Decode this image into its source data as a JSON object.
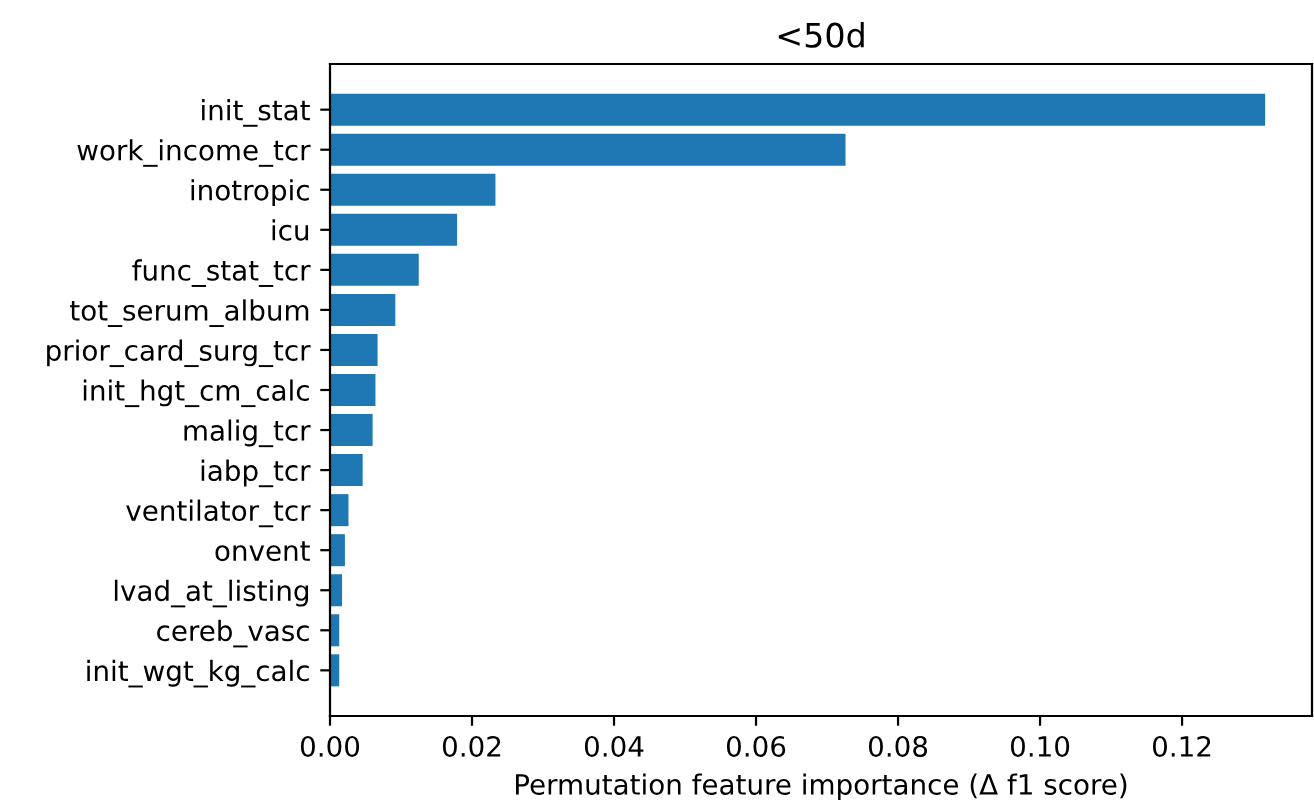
{
  "chart_data": {
    "type": "bar",
    "orientation": "horizontal",
    "title": "<50d",
    "xlabel": "Permutation feature importance (Δ f1 score)",
    "categories": [
      "init_stat",
      "work_income_tcr",
      "inotropic",
      "icu",
      "func_stat_tcr",
      "tot_serum_album",
      "prior_card_surg_tcr",
      "init_hgt_cm_calc",
      "malig_tcr",
      "iabp_tcr",
      "ventilator_tcr",
      "onvent",
      "lvad_at_listing",
      "cereb_vasc",
      "init_wgt_kg_calc"
    ],
    "values": [
      0.1317,
      0.0726,
      0.0233,
      0.0179,
      0.0125,
      0.0092,
      0.0067,
      0.0064,
      0.006,
      0.0046,
      0.0026,
      0.0021,
      0.0017,
      0.0013,
      0.0013
    ],
    "color": "#1f77b4",
    "xlim": [
      0,
      0.1383
    ],
    "xticks": [
      {
        "value": 0,
        "label": "0.00"
      },
      {
        "value": 0.02,
        "label": "0.02"
      },
      {
        "value": 0.04,
        "label": "0.04"
      },
      {
        "value": 0.06,
        "label": "0.06"
      },
      {
        "value": 0.08,
        "label": "0.08"
      },
      {
        "value": 0.1,
        "label": "0.10"
      },
      {
        "value": 0.12,
        "label": "0.12"
      }
    ],
    "grid": false
  }
}
